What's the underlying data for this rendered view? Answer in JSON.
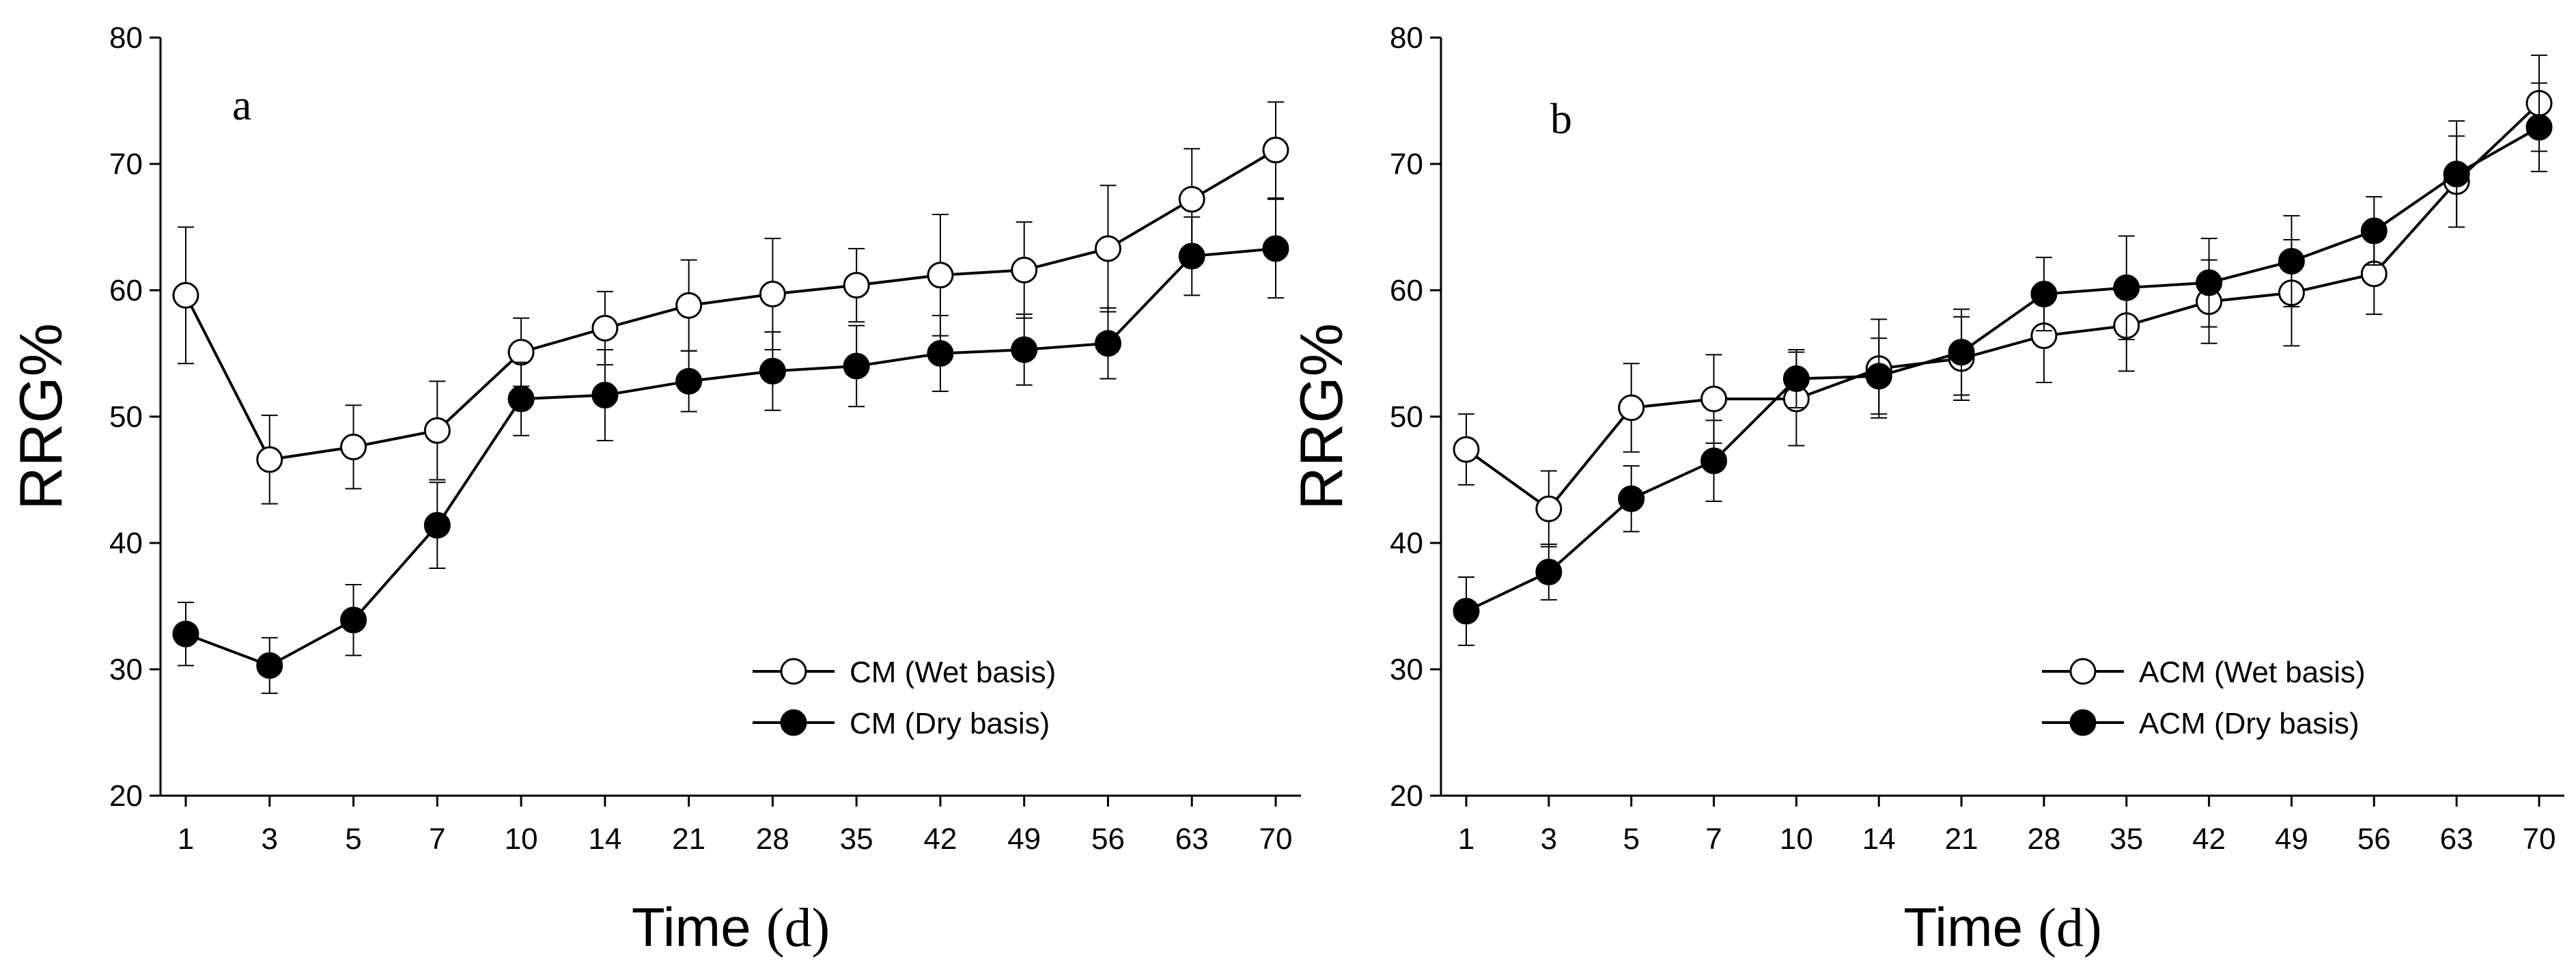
{
  "chart_data": [
    {
      "type": "line",
      "panel_label": "a",
      "xlabel_main": "Time ",
      "xlabel_unit": "(d)",
      "ylabel": "RRG%",
      "ylim": [
        20,
        80
      ],
      "yticks": [
        20,
        30,
        40,
        50,
        60,
        70,
        80
      ],
      "categories": [
        "1",
        "3",
        "5",
        "7",
        "10",
        "14",
        "21",
        "28",
        "35",
        "42",
        "49",
        "56",
        "63",
        "70"
      ],
      "legend_position": "bottom-right",
      "series": [
        {
          "name": "CM (Wet basis)",
          "marker": "open-circle",
          "values": [
            59.6,
            46.6,
            47.6,
            48.9,
            55.1,
            57.0,
            58.8,
            59.7,
            60.4,
            61.2,
            61.6,
            63.3,
            67.2,
            71.1
          ],
          "errors": [
            5.4,
            3.5,
            3.3,
            3.9,
            2.7,
            2.9,
            3.6,
            4.4,
            2.9,
            4.8,
            3.8,
            5.0,
            4.0,
            3.8
          ]
        },
        {
          "name": "CM (Dry basis)",
          "marker": "filled-circle",
          "values": [
            32.8,
            30.3,
            33.9,
            41.4,
            51.4,
            51.7,
            52.8,
            53.6,
            54.0,
            55.0,
            55.3,
            55.8,
            62.7,
            63.3
          ],
          "errors": [
            2.5,
            2.2,
            2.8,
            3.4,
            2.9,
            3.6,
            2.4,
            3.1,
            3.2,
            3.0,
            2.8,
            2.8,
            3.1,
            3.9
          ]
        }
      ]
    },
    {
      "type": "line",
      "panel_label": "b",
      "xlabel_main": "Time ",
      "xlabel_unit": "(d)",
      "ylabel": "RRG%",
      "ylim": [
        20,
        80
      ],
      "yticks": [
        20,
        30,
        40,
        50,
        60,
        70,
        80
      ],
      "categories": [
        "1",
        "3",
        "5",
        "7",
        "10",
        "14",
        "21",
        "28",
        "35",
        "42",
        "49",
        "56",
        "63",
        "70"
      ],
      "legend_position": "bottom-right",
      "series": [
        {
          "name": "ACM (Wet basis)",
          "marker": "open-circle",
          "values": [
            47.4,
            42.7,
            50.7,
            51.4,
            51.4,
            53.8,
            54.6,
            56.4,
            57.2,
            59.1,
            59.8,
            61.3,
            68.6,
            74.8
          ],
          "errors": [
            2.8,
            3.0,
            3.5,
            3.5,
            3.7,
            3.9,
            3.3,
            3.7,
            3.6,
            3.3,
            4.2,
            3.2,
            3.6,
            3.8
          ]
        },
        {
          "name": "ACM (Dry basis)",
          "marker": "filled-circle",
          "values": [
            34.6,
            37.7,
            43.5,
            46.5,
            53.0,
            53.2,
            55.1,
            59.7,
            60.2,
            60.6,
            62.3,
            64.7,
            69.2,
            72.9
          ],
          "errors": [
            2.7,
            2.2,
            2.6,
            3.2,
            2.3,
            3.0,
            3.4,
            2.9,
            4.1,
            3.5,
            3.6,
            2.7,
            4.2,
            3.5
          ]
        }
      ]
    }
  ]
}
